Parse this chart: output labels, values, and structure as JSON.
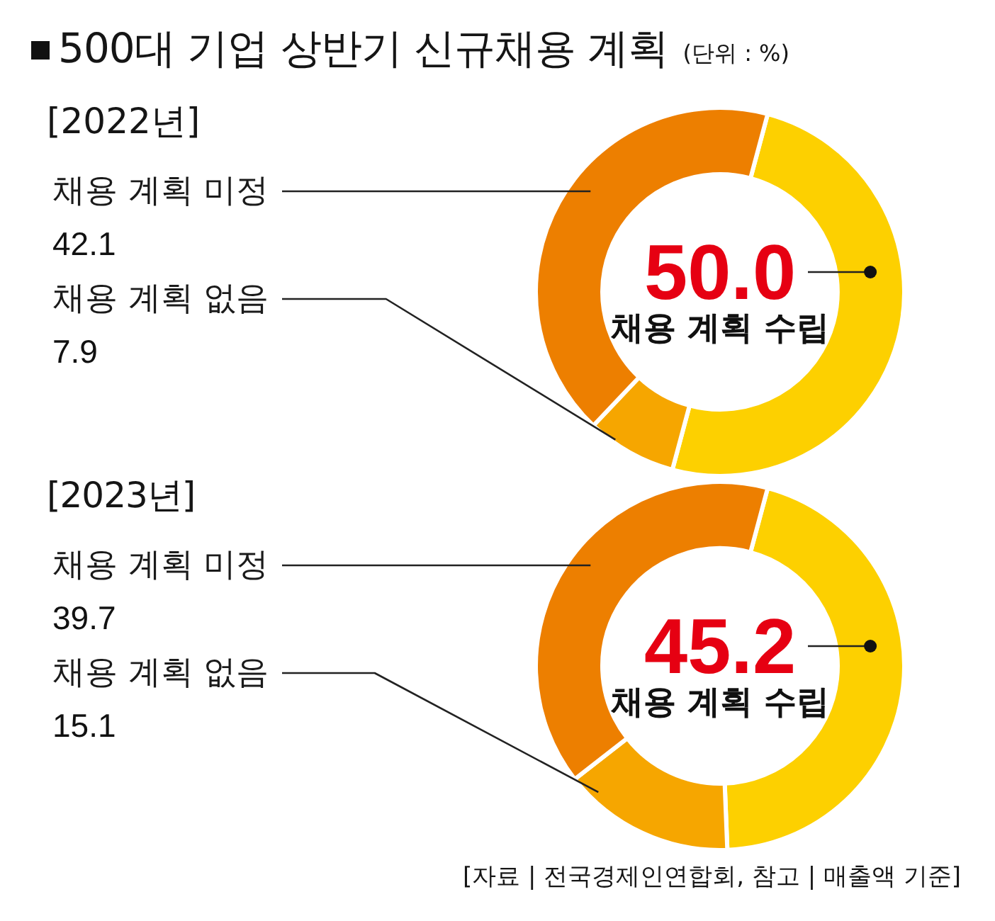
{
  "chart_data": [
    {
      "type": "donut",
      "title": "500대 기업 상반기 신규채용 계획",
      "subtitle": "[2022년]",
      "annotations": [
        "(단위 : %)"
      ],
      "categories": [
        "채용 계획 수립",
        "채용 계획 없음",
        "채용 계획 미정"
      ],
      "values": [
        50.0,
        7.9,
        42.1
      ],
      "colors": [
        "#fdd000",
        "#f6a600",
        "#ed7f00"
      ],
      "value_labels": [
        "50.0",
        "7.9",
        "42.1"
      ]
    },
    {
      "type": "donut",
      "title": "[2023년]",
      "annotations": [
        "[자료 | 전국경제인연합회, 참고 | 매출액 기준]"
      ],
      "categories": [
        "채용 계획 수립",
        "채용 계획 없음",
        "채용 계획 미정"
      ],
      "values": [
        45.2,
        15.1,
        39.7
      ],
      "colors": [
        "#fdd000",
        "#f6a600",
        "#ed7f00"
      ],
      "data_labels": true
    }
  ]
}
